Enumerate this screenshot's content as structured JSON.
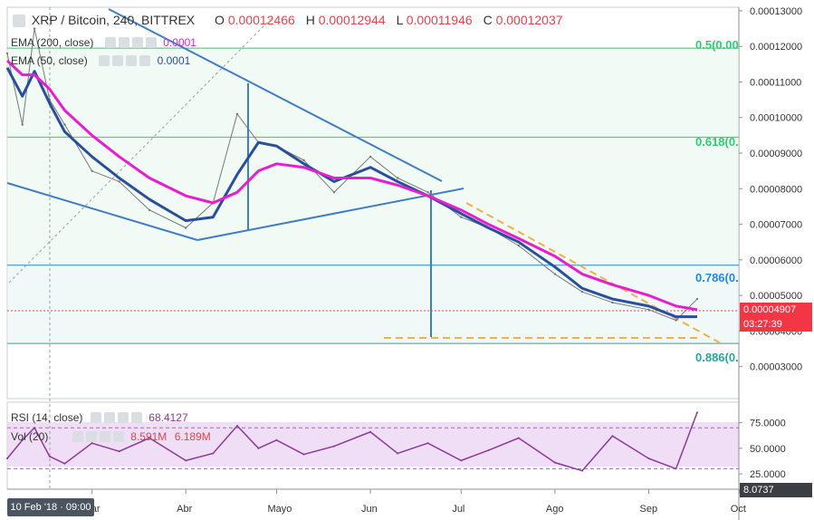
{
  "header": {
    "symbol": "XRP / Bitcoin, 240, BITTREX",
    "o_label": "O",
    "o_value": "0.00012466",
    "h_label": "H",
    "h_value": "0.00012944",
    "l_label": "L",
    "l_value": "0.00011946",
    "c_label": "C",
    "c_value": "0.00012037"
  },
  "ema200": {
    "label": "EMA (200, close)",
    "value": "0.0001",
    "color": "#e51fd0"
  },
  "ema50": {
    "label": "EMA (50, close)",
    "value": "0.0001",
    "color": "#2a4f9a"
  },
  "rsi": {
    "label": "RSI (14, close)",
    "value": "68.4127",
    "color": "#8b3a9a"
  },
  "vol": {
    "label": "Vol (20)",
    "value1": "8.591M",
    "value2": "6.189M"
  },
  "price_tag": {
    "value": "0.00004907",
    "timer": "03:27:39",
    "color": "#f23645"
  },
  "vol_tag": {
    "value": "8.0737"
  },
  "cursor_date": "10 Feb '18 · 09:00",
  "fib_levels": [
    {
      "ratio": "0.5(0.00",
      "price": 0.0001195,
      "color": "#2ecc71"
    },
    {
      "ratio": "0.618(0.",
      "price": 9.45e-05,
      "color": "#2ecc71"
    },
    {
      "ratio": "0.786(0.",
      "price": 5.85e-05,
      "color": "#1e88e5"
    },
    {
      "ratio": "0.886(0.",
      "price": 3.65e-05,
      "color": "#26a69a"
    }
  ],
  "chart_data": [
    {
      "type": "line",
      "title": "XRP / Bitcoin, 240, BITTREX",
      "x_ticks": [
        "Mar",
        "Abr",
        "Mayo",
        "Jun",
        "Jul",
        "Ago",
        "Sep",
        "Oct"
      ],
      "y_ticks": [
        "0.00013000",
        "0.00012000",
        "0.00011000",
        "0.00010000",
        "0.00009000",
        "0.00008000",
        "0.00007000",
        "0.00006000",
        "0.00005000",
        "0.00004000",
        "0.00003000"
      ],
      "ylim": [
        2.1e-05,
        0.000131
      ],
      "x": [
        "2018-02-01",
        "2018-02-06",
        "2018-02-10",
        "2018-02-15",
        "2018-02-20",
        "2018-03-01",
        "2018-03-10",
        "2018-03-20",
        "2018-04-01",
        "2018-04-10",
        "2018-04-18",
        "2018-04-25",
        "2018-05-01",
        "2018-05-10",
        "2018-05-20",
        "2018-06-01",
        "2018-06-10",
        "2018-06-20",
        "2018-07-01",
        "2018-07-10",
        "2018-07-20",
        "2018-08-01",
        "2018-08-10",
        "2018-08-20",
        "2018-09-01",
        "2018-09-10",
        "2018-09-17"
      ],
      "series": [
        {
          "name": "XRP / Bitcoin",
          "color": "#787878",
          "values": [
            0.000118,
            9.8e-05,
            0.000125,
            0.000105,
            9.8e-05,
            8.5e-05,
            8.2e-05,
            7.4e-05,
            6.9e-05,
            7.6e-05,
            0.000101,
            9.3e-05,
            9.2e-05,
            8.8e-05,
            7.9e-05,
            8.9e-05,
            8.3e-05,
            7.9e-05,
            7.2e-05,
            6.9e-05,
            6.4e-05,
            5.6e-05,
            5.1e-05,
            4.8e-05,
            4.6e-05,
            4.3e-05,
            4.9e-05
          ]
        },
        {
          "name": "EMA (50, close)",
          "color": "#2a4f9a",
          "values": [
            0.000114,
            0.000106,
            0.000113,
            0.000104,
            9.6e-05,
            8.9e-05,
            8.3e-05,
            7.7e-05,
            7.1e-05,
            7.2e-05,
            8.4e-05,
            9.3e-05,
            9.2e-05,
            8.7e-05,
            8.2e-05,
            8.6e-05,
            8.2e-05,
            7.8e-05,
            7.3e-05,
            6.9e-05,
            6.5e-05,
            5.8e-05,
            5.2e-05,
            4.9e-05,
            4.7e-05,
            4.4e-05,
            4.4e-05
          ]
        },
        {
          "name": "EMA (200, close)",
          "color": "#e51fd0",
          "values": [
            0.000116,
            0.000112,
            0.000112,
            0.000108,
            0.000102,
            9.5e-05,
            8.9e-05,
            8.3e-05,
            7.8e-05,
            7.6e-05,
            7.9e-05,
            8.5e-05,
            8.7e-05,
            8.6e-05,
            8.3e-05,
            8.3e-05,
            8.1e-05,
            7.8e-05,
            7.4e-05,
            7e-05,
            6.6e-05,
            6.1e-05,
            5.6e-05,
            5.3e-05,
            5e-05,
            4.7e-05,
            4.6e-05
          ]
        }
      ]
    },
    {
      "type": "line",
      "title": "RSI (14, close)",
      "y_ticks": [
        "75.0000",
        "50.0000",
        "25.0000"
      ],
      "ylim": [
        10,
        95
      ],
      "series": [
        {
          "name": "RSI (14, close)",
          "color": "#8b3a9a",
          "values": [
            40,
            58,
            70,
            42,
            35,
            55,
            47,
            60,
            38,
            45,
            72,
            50,
            58,
            44,
            52,
            66,
            45,
            55,
            38,
            48,
            60,
            36,
            28,
            62,
            40,
            30,
            85
          ]
        }
      ]
    }
  ]
}
